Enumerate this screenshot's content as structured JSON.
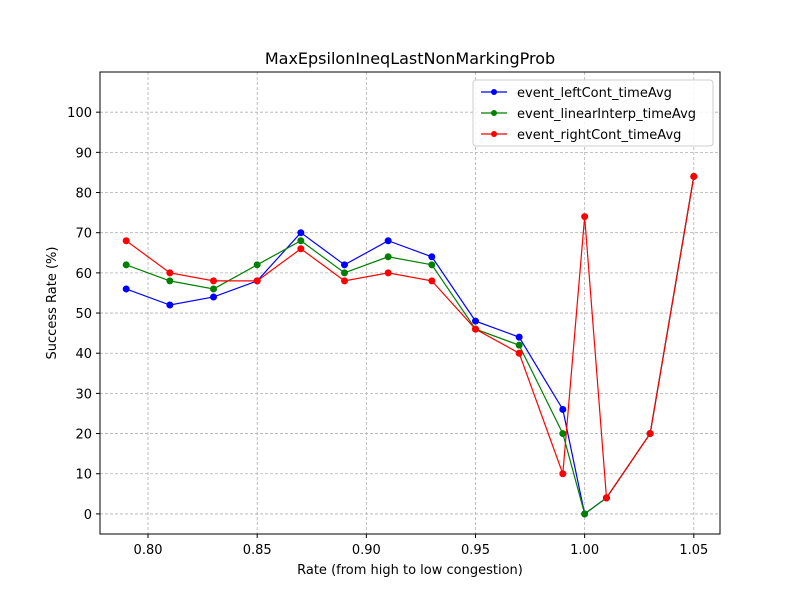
{
  "chart_data": {
    "type": "line",
    "title": "MaxEpsilonIneqLastNonMarkingProb",
    "xlabel": "Rate (from high to low congestion)",
    "ylabel": "Success Rate (%)",
    "xlim": [
      0.778,
      1.062
    ],
    "ylim": [
      -5,
      110
    ],
    "xticks": [
      0.8,
      0.85,
      0.9,
      0.95,
      1.0,
      1.05
    ],
    "xtick_labels": [
      "0.80",
      "0.85",
      "0.90",
      "0.95",
      "1.00",
      "1.05"
    ],
    "yticks": [
      0,
      10,
      20,
      30,
      40,
      50,
      60,
      70,
      80,
      90,
      100
    ],
    "ytick_labels": [
      "0",
      "10",
      "20",
      "30",
      "40",
      "50",
      "60",
      "70",
      "80",
      "90",
      "100"
    ],
    "grid": true,
    "legend_position": "top-right",
    "x": [
      0.79,
      0.81,
      0.83,
      0.85,
      0.87,
      0.89,
      0.91,
      0.93,
      0.95,
      0.97,
      0.99,
      1.0,
      1.01,
      1.03,
      1.05
    ],
    "series": [
      {
        "name": "event_leftCont_timeAvg",
        "color": "#0000ff",
        "values": [
          56,
          52,
          54,
          58,
          70,
          62,
          68,
          64,
          48,
          44,
          26,
          0,
          4,
          20,
          84
        ]
      },
      {
        "name": "event_linearInterp_timeAvg",
        "color": "#008000",
        "values": [
          62,
          58,
          56,
          62,
          68,
          60,
          64,
          62,
          46,
          42,
          20,
          0,
          4,
          20,
          84
        ]
      },
      {
        "name": "event_rightCont_timeAvg",
        "color": "#ff0000",
        "values": [
          68,
          60,
          58,
          58,
          66,
          58,
          60,
          58,
          46,
          40,
          10,
          74,
          4,
          20,
          84
        ]
      }
    ]
  }
}
